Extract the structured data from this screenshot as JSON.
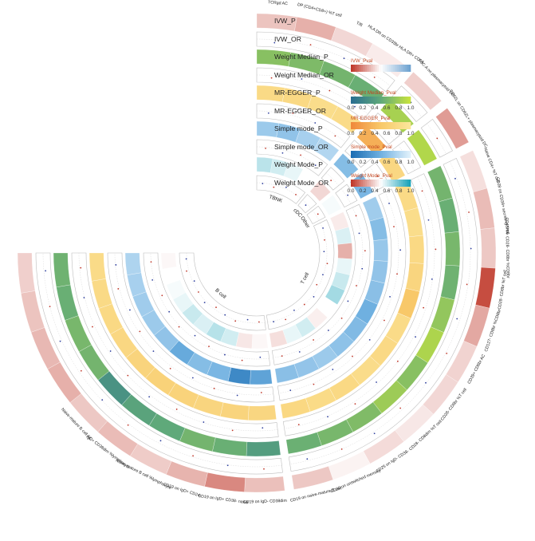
{
  "chart_data": {
    "type": "heatmap",
    "title": "",
    "rings": [
      "IVW_P",
      "IVW_OR",
      "Weight Median_P",
      "Weight Median_OR",
      "MR-EGGER_P",
      "MR-EGGER_OR",
      "Simple mode_P",
      "Simple mode_OR",
      "Weight Mode_P",
      "Weight Mode_OR"
    ],
    "categories": [
      {
        "name": "TBNK",
        "count": 4
      },
      {
        "name": "cDC",
        "count": 1
      },
      {
        "name": "Other",
        "count": 1
      },
      {
        "name": "T cell",
        "count": 11
      },
      {
        "name": "B cell",
        "count": 10
      }
    ],
    "traits": [
      "TCRgd AC",
      "DP (CD4+CD8+) %T cell",
      "T/B",
      "HLA DR on CD33br HLA DR+ CD14-",
      "FSC-A on plasmacytoid DC",
      "CD62L on CD62L+ plasmacytoid DC",
      "Naive CD4+ %T cell",
      "CD28 on CD39+ secreting Treg",
      "CD45RA- CD28- CD8br %CD8br",
      "CD28- CD8br %T cell",
      "CD127- CD8br %CD8br",
      "CD39+ CD8br AC",
      "CD28- CD8br %T cell",
      "CD28- CD8dim %T cell",
      "CD25 on IgD- CD38-",
      "CD20 on unswitched memory",
      "CD19 on naive-mature B cell",
      "CD19 on IgD- CD38dim",
      "CD19 on IgD+ CD38- naive",
      "CD19 on IgD+ CD24-",
      "Naive-mature B cell %lymphocyte",
      "IgD+ CD38dim %lymphocyte",
      "Naive-mature B cell AC",
      "",
      "",
      "",
      ""
    ],
    "pvalues": {
      "IVW": [
        0.35,
        0.3,
        0.4,
        0.45,
        0.38,
        0.25,
        0.42,
        0.33,
        0.36,
        0.05,
        0.28,
        0.39,
        0.4,
        0.44,
        0.41,
        0.47,
        0.36,
        0.34,
        0.2,
        0.31,
        0.37,
        0.33,
        0.36,
        0.3,
        0.32,
        0.35,
        0.38
      ],
      "Weight Median": [
        0.7,
        0.65,
        0.6,
        0.55,
        0.85,
        0.9,
        0.6,
        0.55,
        0.62,
        0.58,
        0.75,
        0.88,
        0.7,
        0.8,
        0.66,
        0.62,
        0.56,
        0.4,
        0.55,
        0.6,
        0.5,
        0.45,
        0.3,
        0.6,
        0.62,
        0.55,
        0.58
      ],
      "MR-EGGER": [
        0.8,
        0.78,
        0.85,
        0.82,
        0.3,
        0.75,
        0.8,
        0.85,
        0.78,
        0.72,
        0.5,
        0.82,
        0.79,
        0.84,
        0.78,
        0.81,
        0.76,
        0.74,
        0.7,
        0.72,
        0.68,
        0.66,
        0.7,
        0.75,
        0.78,
        0.8,
        0.82
      ],
      "Simple mode": [
        0.7,
        0.65,
        0.75,
        0.8,
        0.6,
        0.55,
        0.72,
        0.6,
        0.68,
        0.65,
        0.62,
        0.5,
        0.58,
        0.64,
        0.7,
        0.66,
        0.62,
        0.4,
        0.2,
        0.55,
        0.6,
        0.45,
        0.65,
        0.7,
        0.72,
        0.75,
        0.78
      ],
      "Weight Mode": [
        0.65,
        0.6,
        0.55,
        0.5,
        0.4,
        0.52,
        0.45,
        0.58,
        0.3,
        0.55,
        0.62,
        0.7,
        0.5,
        0.46,
        0.6,
        0.55,
        0.42,
        0.48,
        0.44,
        0.6,
        0.66,
        0.58,
        0.62,
        0.55,
        0.52,
        0.5,
        0.48
      ]
    },
    "legend": [
      {
        "title": "IVW_Pval",
        "scale": "ivw",
        "ticks": []
      },
      {
        "title": "Weight Median_Pval",
        "scale": "wm",
        "ticks": [
          "0.0",
          "0.2",
          "0.4",
          "0.6",
          "0.8",
          "1.0"
        ]
      },
      {
        "title": "MR-EGGER_Pval",
        "scale": "egger",
        "ticks": [
          "0.0",
          "0.2",
          "0.4",
          "0.6",
          "0.8",
          "1.0"
        ]
      },
      {
        "title": "Simple mode_Pval",
        "scale": "sm",
        "ticks": [
          "0.0",
          "0.2",
          "0.4",
          "0.6",
          "0.8",
          "1.0"
        ]
      },
      {
        "title": "Weight Mode_Pval",
        "scale": "wmode",
        "ticks": [
          "0.0",
          "0.2",
          "0.4",
          "0.6",
          "0.8",
          "1.0"
        ]
      }
    ],
    "colors": {
      "ivw": [
        "#c0392b",
        "#ffffff",
        "#6fa3d1"
      ],
      "wm": [
        "#2a6f91",
        "#5fa97a",
        "#c6e23f"
      ],
      "egger": [
        "#f08a3c",
        "#f8c869",
        "#fbe69a"
      ],
      "sm": [
        "#1e6fb4",
        "#6fb0e0",
        "#dff0fb"
      ],
      "wmode": [
        "#c0392b",
        "#ffffff",
        "#1aa3b9"
      ],
      "or_dot": "#c0392b",
      "or_dot2": "#2e3f9e"
    }
  }
}
